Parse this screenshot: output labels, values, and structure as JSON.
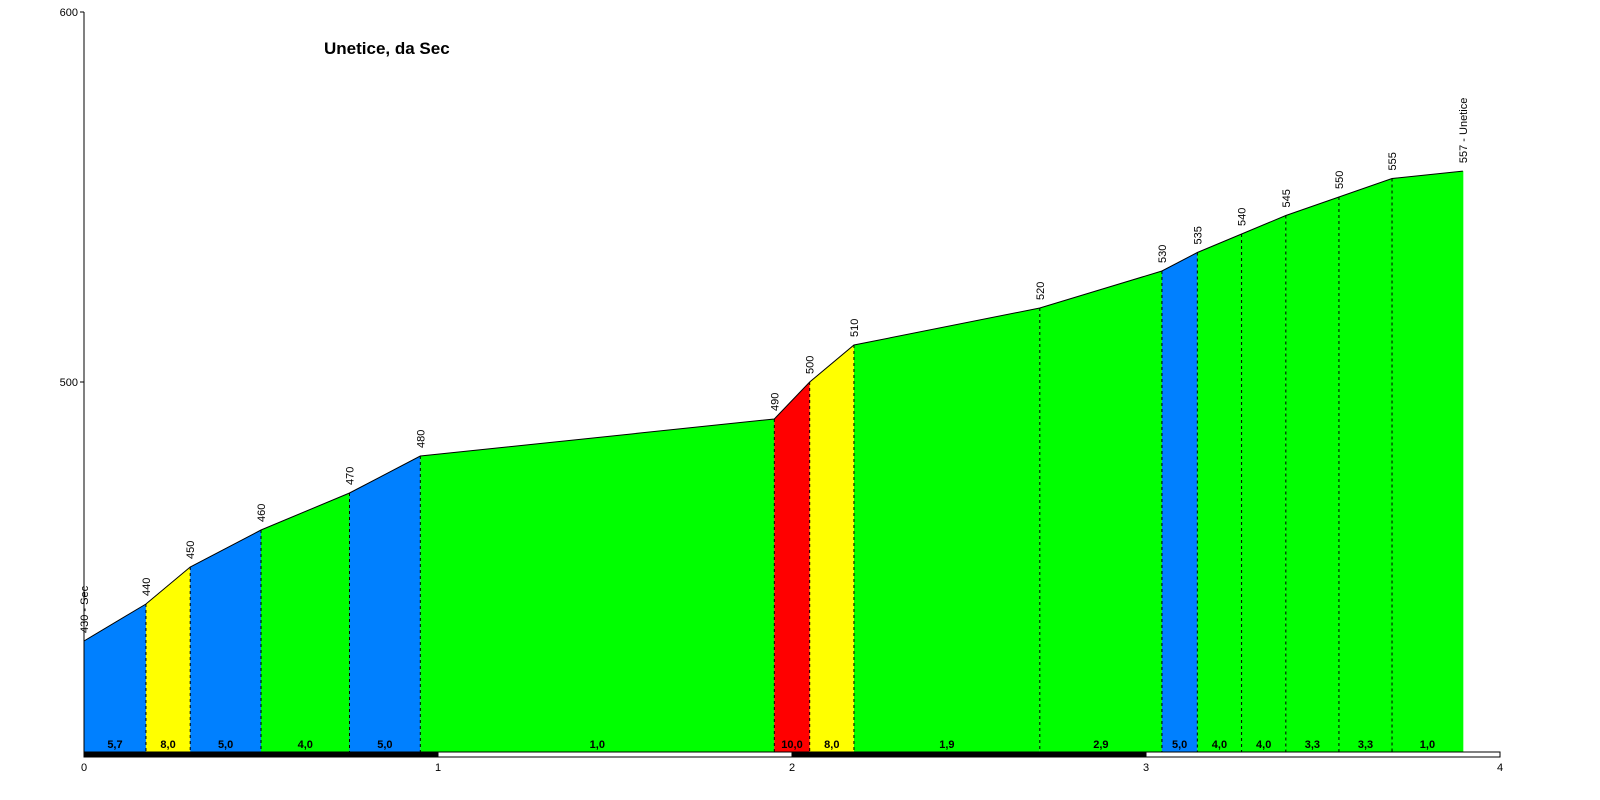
{
  "chart_data": {
    "type": "area",
    "title": "Unetice, da Sec",
    "xlabel": "",
    "ylabel": "",
    "xlim": [
      0,
      4
    ],
    "ylim": [
      400,
      600
    ],
    "x_ticks": [
      {
        "value": 0,
        "label": "0"
      },
      {
        "value": 1,
        "label": "1"
      },
      {
        "value": 2,
        "label": "2"
      },
      {
        "value": 3,
        "label": "3"
      },
      {
        "value": 4,
        "label": "4"
      }
    ],
    "y_ticks": [
      {
        "value": 500,
        "label": "500"
      },
      {
        "value": 600,
        "label": "600"
      }
    ],
    "points": [
      {
        "x": 0.0,
        "y": 430,
        "label": "430 - Sec"
      },
      {
        "x": 0.175,
        "y": 440,
        "label": "440"
      },
      {
        "x": 0.3,
        "y": 450,
        "label": "450"
      },
      {
        "x": 0.5,
        "y": 460,
        "label": "460"
      },
      {
        "x": 0.75,
        "y": 470,
        "label": "470"
      },
      {
        "x": 0.95,
        "y": 480,
        "label": "480"
      },
      {
        "x": 1.95,
        "y": 490,
        "label": "490"
      },
      {
        "x": 2.05,
        "y": 500,
        "label": "500"
      },
      {
        "x": 2.175,
        "y": 510,
        "label": "510"
      },
      {
        "x": 2.7,
        "y": 520,
        "label": "520"
      },
      {
        "x": 3.045,
        "y": 530,
        "label": "530"
      },
      {
        "x": 3.145,
        "y": 535,
        "label": "535"
      },
      {
        "x": 3.27,
        "y": 540,
        "label": "540"
      },
      {
        "x": 3.395,
        "y": 545,
        "label": "545"
      },
      {
        "x": 3.545,
        "y": 550,
        "label": "550"
      },
      {
        "x": 3.695,
        "y": 555,
        "label": "555"
      },
      {
        "x": 3.895,
        "y": 557,
        "label": "557 - Unetice"
      }
    ],
    "segments": [
      {
        "gradient": "5,7",
        "color": "#0080ff"
      },
      {
        "gradient": "8,0",
        "color": "#ffff00"
      },
      {
        "gradient": "5,0",
        "color": "#0080ff"
      },
      {
        "gradient": "4,0",
        "color": "#00ff00"
      },
      {
        "gradient": "5,0",
        "color": "#0080ff"
      },
      {
        "gradient": "1,0",
        "color": "#00ff00"
      },
      {
        "gradient": "10,0",
        "color": "#ff0000"
      },
      {
        "gradient": "8,0",
        "color": "#ffff00"
      },
      {
        "gradient": "1,9",
        "color": "#00ff00"
      },
      {
        "gradient": "2,9",
        "color": "#00ff00"
      },
      {
        "gradient": "5,0",
        "color": "#0080ff"
      },
      {
        "gradient": "4,0",
        "color": "#00ff00"
      },
      {
        "gradient": "4,0",
        "color": "#00ff00"
      },
      {
        "gradient": "3,3",
        "color": "#00ff00"
      },
      {
        "gradient": "3,3",
        "color": "#00ff00"
      },
      {
        "gradient": "1,0",
        "color": "#00ff00"
      }
    ],
    "grid": false,
    "legend": "none"
  }
}
